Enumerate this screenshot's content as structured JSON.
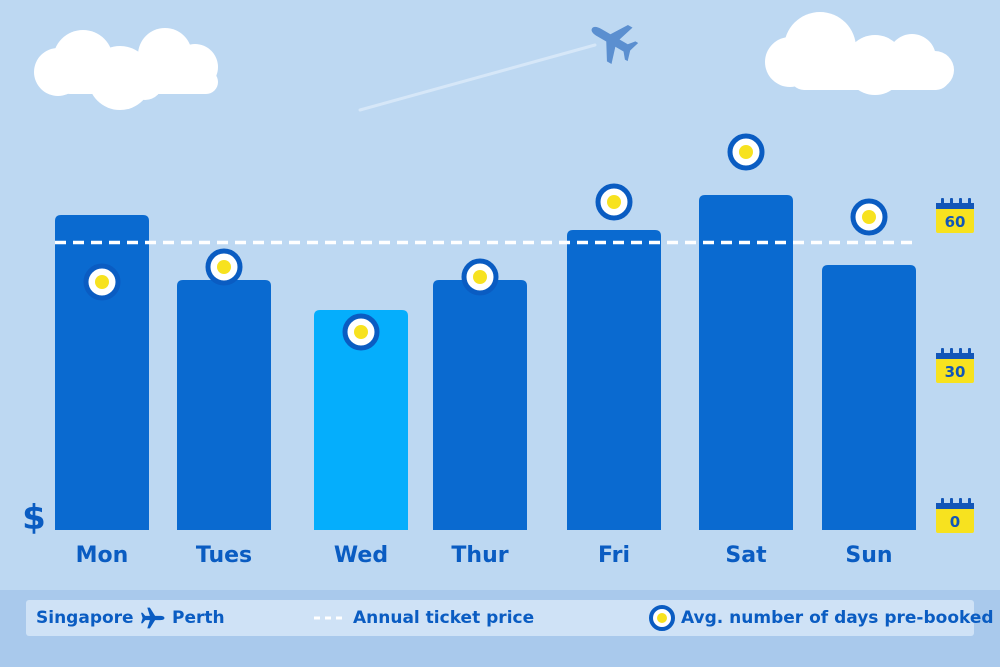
{
  "chart_data": {
    "type": "bar",
    "categories": [
      "Mon",
      "Tues",
      "Wed",
      "Thur",
      "Fri",
      "Sat",
      "Sun"
    ],
    "series": [
      {
        "name": "Singapore to Perth ticket price",
        "values": [
          63,
          50,
          44,
          50,
          60,
          67,
          53
        ],
        "unit": "relative price",
        "highlight_index": 2
      },
      {
        "name": "Avg. number of days pre-booked",
        "values": [
          48,
          51,
          38,
          49,
          64,
          74,
          61
        ]
      }
    ],
    "reference_line": {
      "name": "Annual ticket price",
      "value": 57.5,
      "style": "dashed"
    },
    "left_axis_label": "$",
    "right_axis": {
      "ticks": [
        0,
        30,
        60
      ],
      "unit": "days"
    },
    "ylim": [
      0,
      77
    ],
    "grid": false,
    "legend_position": "bottom",
    "colors": {
      "bar": "#0a6ad0",
      "bar_highlight": "#05aefc",
      "marker_ring": "#0a5cc2",
      "marker_fill": "#f7e21f",
      "dashed_line": "#ffffff",
      "background": "#bdd8f2",
      "calendar": "#f7e21f"
    }
  },
  "legend": {
    "origin": "Singapore",
    "destination": "Perth",
    "route_icon": "airplane-icon",
    "line_label": "Annual ticket price",
    "marker_label": "Avg. number of days pre-booked"
  },
  "decorations": {
    "icons": [
      "cloud-icon",
      "cloud-icon",
      "airplane-icon",
      "calendar-icon"
    ]
  }
}
